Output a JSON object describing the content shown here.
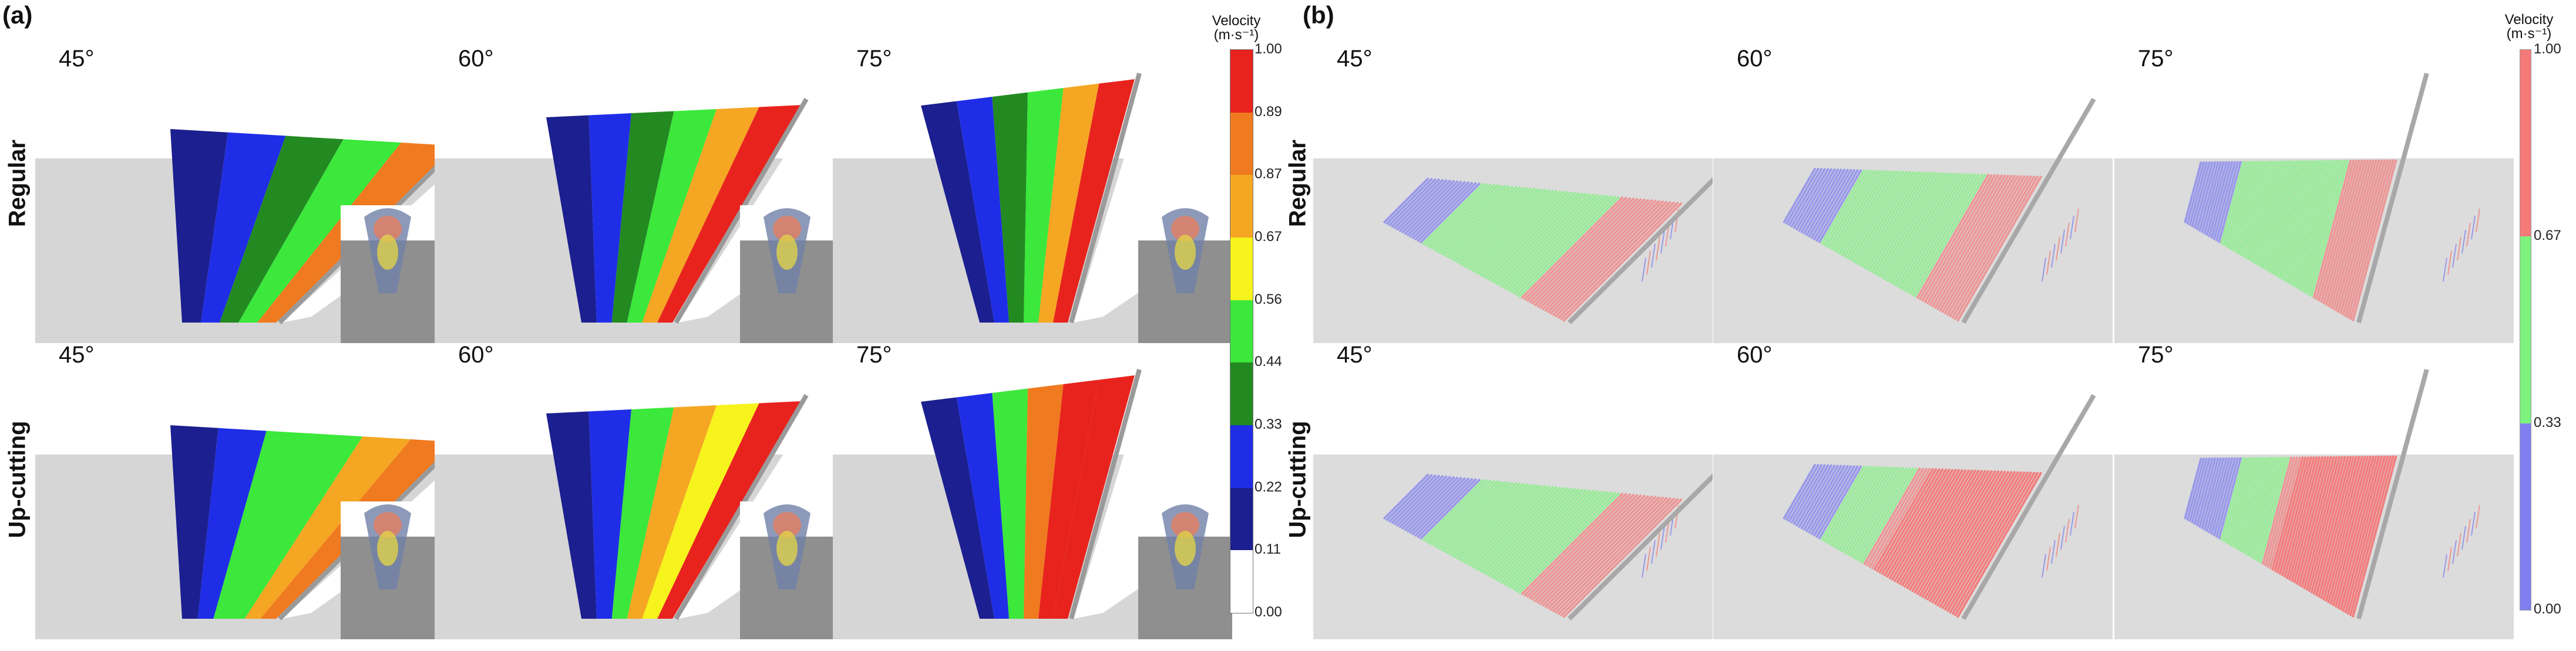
{
  "panel_a": {
    "label": "(a)",
    "rows": [
      {
        "label": "Regular",
        "cols": [
          {
            "angle": "45°"
          },
          {
            "angle": "60°"
          },
          {
            "angle": "75°"
          }
        ]
      },
      {
        "label": "Up-cutting",
        "cols": [
          {
            "angle": "45°"
          },
          {
            "angle": "60°"
          },
          {
            "angle": "75°"
          }
        ]
      }
    ],
    "colorbar": {
      "title_line1": "Velocity",
      "title_line2": "(m·s⁻¹)",
      "ticks": [
        "1.00",
        "0.89",
        "0.87",
        "0.67",
        "0.56",
        "0.44",
        "0.33",
        "0.22",
        "0.11",
        "0.00"
      ],
      "colors": [
        "#e8231e",
        "#f07a1f",
        "#f5a623",
        "#f7f31c",
        "#3be83b",
        "#238a22",
        "#1f2ee6",
        "#1c1f8f",
        "#ffffff"
      ]
    }
  },
  "panel_b": {
    "label": "(b)",
    "rows": [
      {
        "label": "Regular",
        "cols": [
          {
            "angle": "45°"
          },
          {
            "angle": "60°"
          },
          {
            "angle": "75°"
          }
        ]
      },
      {
        "label": "Up-cutting",
        "cols": [
          {
            "angle": "45°"
          },
          {
            "angle": "60°"
          },
          {
            "angle": "75°"
          }
        ]
      }
    ],
    "colorbar": {
      "title_line1": "Velocity",
      "title_line2": "(m·s⁻¹)",
      "ticks": [
        "1.00",
        "0.67",
        "0.33",
        "0.00"
      ],
      "colors": [
        "#f47a7a",
        "#7ef27e",
        "#7f7ff0"
      ]
    }
  }
}
